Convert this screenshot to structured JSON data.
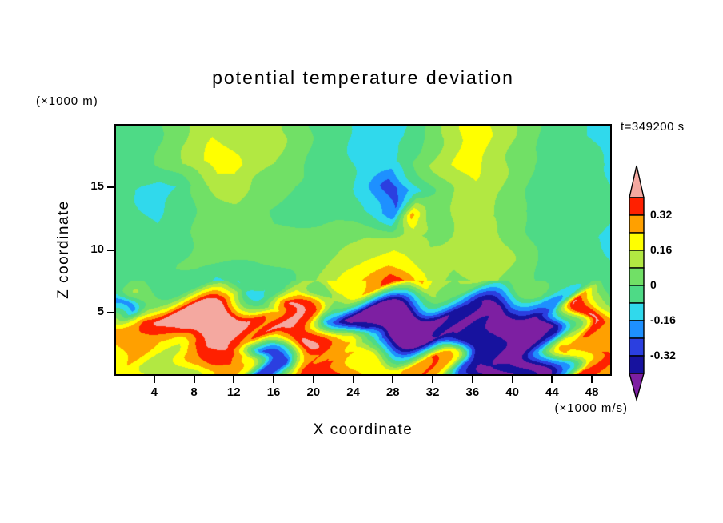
{
  "chart_data": {
    "type": "heatmap",
    "title": "potential temperature deviation",
    "xlabel": "X coordinate",
    "ylabel": "Z coordinate",
    "z_unit_label": "(×1000 m)",
    "x_unit_label": "(×1000 m/s)",
    "time_label": "t=349200 s",
    "x_range": [
      0,
      50
    ],
    "z_range": [
      0,
      20
    ],
    "x_ticks": [
      4,
      8,
      12,
      16,
      20,
      24,
      28,
      32,
      36,
      40,
      44,
      48
    ],
    "z_ticks": [
      5,
      10,
      15
    ],
    "levels": [
      -0.4,
      -0.32,
      -0.24,
      -0.16,
      -0.08,
      0,
      0.08,
      0.16,
      0.24,
      0.32,
      0.4
    ],
    "colors": [
      "#7d1fa2",
      "#17129e",
      "#2b3fe0",
      "#1e90ff",
      "#30d9ec",
      "#4eda86",
      "#71e066",
      "#b2e842",
      "#ffff00",
      "#ffa000",
      "#ff2000",
      "#f4a8a0"
    ],
    "colorbar_labels": [
      "0.32",
      "0.16",
      "0",
      "-0.16",
      "-0.32"
    ],
    "grid": {
      "x": [
        0,
        2,
        4,
        6,
        8,
        10,
        12,
        14,
        16,
        18,
        20,
        22,
        24,
        26,
        28,
        30,
        32,
        34,
        36,
        38,
        40,
        42,
        44,
        46,
        48,
        50
      ],
      "z": [
        19,
        17,
        15,
        13,
        11,
        9,
        7,
        5,
        3,
        1
      ],
      "values": [
        [
          -0.03,
          -0.03,
          -0.02,
          0.04,
          0.1,
          0.16,
          0.12,
          0.08,
          0.1,
          0.06,
          -0.02,
          -0.03,
          -0.1,
          -0.13,
          -0.12,
          -0.06,
          0.02,
          0.12,
          0.2,
          0.16,
          0.1,
          0.02,
          -0.02,
          -0.01,
          -0.08,
          -0.12
        ],
        [
          -0.03,
          -0.02,
          0.0,
          0.06,
          0.14,
          0.21,
          0.18,
          0.1,
          0.08,
          0.04,
          -0.02,
          -0.04,
          -0.08,
          -0.12,
          -0.09,
          0.0,
          0.08,
          0.15,
          0.21,
          0.14,
          0.06,
          0.0,
          -0.02,
          -0.02,
          -0.05,
          -0.09
        ],
        [
          -0.04,
          -0.09,
          -0.12,
          -0.08,
          0.02,
          0.1,
          0.12,
          0.06,
          0.02,
          0.0,
          -0.02,
          -0.03,
          -0.06,
          -0.16,
          -0.3,
          -0.12,
          0.0,
          0.09,
          0.15,
          0.11,
          0.04,
          -0.01,
          -0.02,
          -0.02,
          -0.04,
          -0.08
        ],
        [
          -0.03,
          -0.07,
          -0.1,
          -0.04,
          0.0,
          0.04,
          0.05,
          0.02,
          0.0,
          -0.01,
          -0.02,
          -0.02,
          -0.05,
          -0.13,
          -0.22,
          0.28,
          0.02,
          0.08,
          0.12,
          0.08,
          0.02,
          -0.01,
          -0.02,
          -0.02,
          -0.03,
          -0.05
        ],
        [
          -0.02,
          -0.04,
          -0.06,
          -0.02,
          0.0,
          0.02,
          0.01,
          0.0,
          0.0,
          0.01,
          0.02,
          0.04,
          0.06,
          0.09,
          0.11,
          0.09,
          0.06,
          0.08,
          0.1,
          0.12,
          0.06,
          0.0,
          -0.02,
          -0.03,
          -0.07,
          -0.11
        ],
        [
          -0.02,
          -0.02,
          -0.02,
          0.0,
          0.01,
          0.01,
          0.0,
          0.0,
          0.01,
          0.02,
          0.05,
          0.09,
          0.14,
          0.19,
          0.22,
          0.17,
          0.1,
          0.09,
          0.13,
          0.16,
          0.09,
          0.01,
          -0.02,
          -0.03,
          -0.05,
          -0.08
        ],
        [
          -0.03,
          -0.02,
          -0.02,
          0.0,
          -0.04,
          -0.12,
          -0.04,
          -0.1,
          -0.12,
          -0.02,
          0.06,
          0.14,
          0.24,
          0.31,
          0.42,
          0.26,
          0.12,
          0.04,
          0.06,
          0.09,
          0.04,
          0.0,
          -0.02,
          -0.02,
          -0.03,
          -0.04
        ],
        [
          -0.2,
          0.15,
          0.36,
          0.43,
          0.46,
          0.46,
          0.44,
          0.36,
          0.2,
          0.42,
          0.3,
          -0.15,
          -0.43,
          -0.46,
          -0.45,
          -0.44,
          -0.4,
          -0.34,
          -0.42,
          -0.46,
          -0.44,
          -0.46,
          -0.42,
          -0.2,
          0.42,
          0.25
        ],
        [
          0.24,
          0.3,
          0.26,
          0.32,
          0.44,
          0.45,
          0.42,
          0.28,
          0.42,
          0.44,
          0.32,
          0.15,
          -0.32,
          -0.45,
          -0.46,
          -0.45,
          -0.43,
          -0.4,
          -0.45,
          -0.32,
          -0.45,
          -0.46,
          -0.4,
          0.08,
          0.3,
          0.28
        ],
        [
          0.18,
          0.22,
          0.14,
          0.1,
          0.24,
          0.3,
          0.18,
          -0.26,
          -0.3,
          0.02,
          0.33,
          0.38,
          0.26,
          0.18,
          0.22,
          0.28,
          0.33,
          0.22,
          -0.26,
          -0.43,
          -0.38,
          -0.43,
          -0.14,
          0.33,
          0.36,
          0.26
        ]
      ]
    }
  }
}
